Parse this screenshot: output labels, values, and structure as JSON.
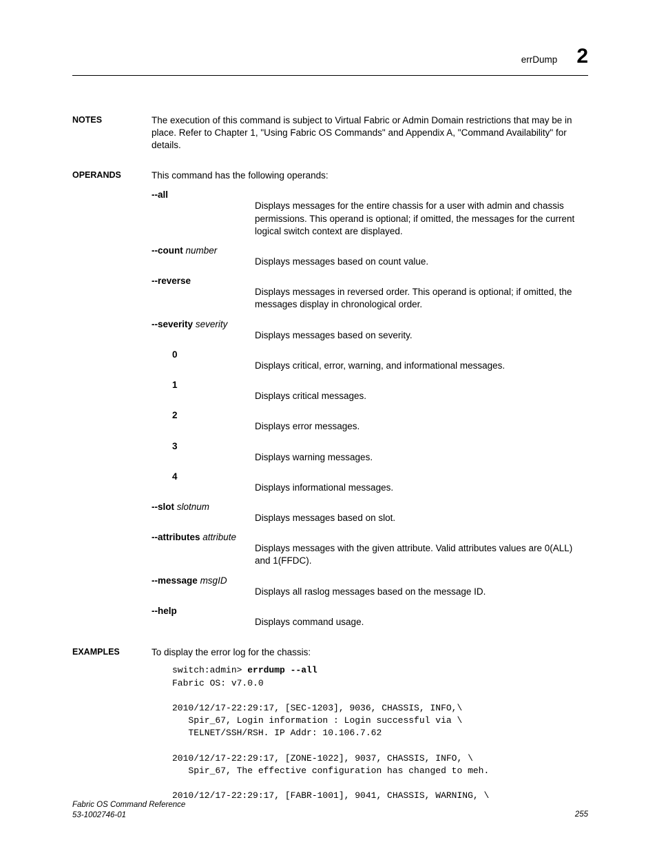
{
  "header": {
    "command": "errDump",
    "chapter": "2"
  },
  "notes": {
    "label": "NOTES",
    "text": "The execution of this command is subject to Virtual Fabric or Admin Domain restrictions that may be in place. Refer to Chapter 1, \"Using Fabric OS Commands\" and Appendix A, \"Command Availability\" for details."
  },
  "operands": {
    "label": "OPERANDS",
    "intro": "This command has the following operands:",
    "items": [
      {
        "flag": "--all",
        "arg": "",
        "desc": "Displays messages for the entire chassis for a user with admin and chassis permissions. This operand is optional; if omitted, the messages for the current logical switch context are displayed."
      },
      {
        "flag": "--count",
        "arg": "number",
        "desc": "Displays messages based on count value."
      },
      {
        "flag": "--reverse",
        "arg": "",
        "desc": "Displays messages in reversed order. This operand is optional; if omitted, the messages display in chronological order."
      },
      {
        "flag": "--severity",
        "arg": "severity",
        "desc": "Displays messages based on severity.",
        "subs": [
          {
            "name": "0",
            "desc": "Displays critical, error, warning, and informational messages."
          },
          {
            "name": "1",
            "desc": "Displays critical messages."
          },
          {
            "name": "2",
            "desc": "Displays error messages."
          },
          {
            "name": "3",
            "desc": "Displays warning messages."
          },
          {
            "name": "4",
            "desc": "Displays informational messages."
          }
        ]
      },
      {
        "flag": "--slot",
        "arg": "slotnum",
        "desc": "Displays messages based on slot."
      },
      {
        "flag": "--attributes",
        "arg": "attribute",
        "desc": "Displays messages with the given attribute. Valid attributes values are 0(ALL) and 1(FFDC)."
      },
      {
        "flag": "--message",
        "arg": "msgID",
        "desc": "Displays all raslog messages based on the message ID."
      },
      {
        "flag": "--help",
        "arg": "",
        "desc": "Displays command usage."
      }
    ]
  },
  "examples": {
    "label": "EXAMPLES",
    "intro": "To display the error log for the chassis:",
    "code": {
      "prompt": "switch:admin> ",
      "cmd": "errdump --all",
      "lines": [
        "Fabric OS: v7.0.0",
        "",
        "2010/12/17-22:29:17, [SEC-1203], 9036, CHASSIS, INFO,\\",
        "   Spir_67, Login information : Login successful via \\",
        "   TELNET/SSH/RSH. IP Addr: 10.106.7.62",
        "",
        "2010/12/17-22:29:17, [ZONE-1022], 9037, CHASSIS, INFO, \\",
        "   Spir_67, The effective configuration has changed to meh.",
        "",
        "2010/12/17-22:29:17, [FABR-1001], 9041, CHASSIS, WARNING, \\"
      ]
    }
  },
  "footer": {
    "title": "Fabric OS Command Reference",
    "doc": "53-1002746-01",
    "page": "255"
  }
}
